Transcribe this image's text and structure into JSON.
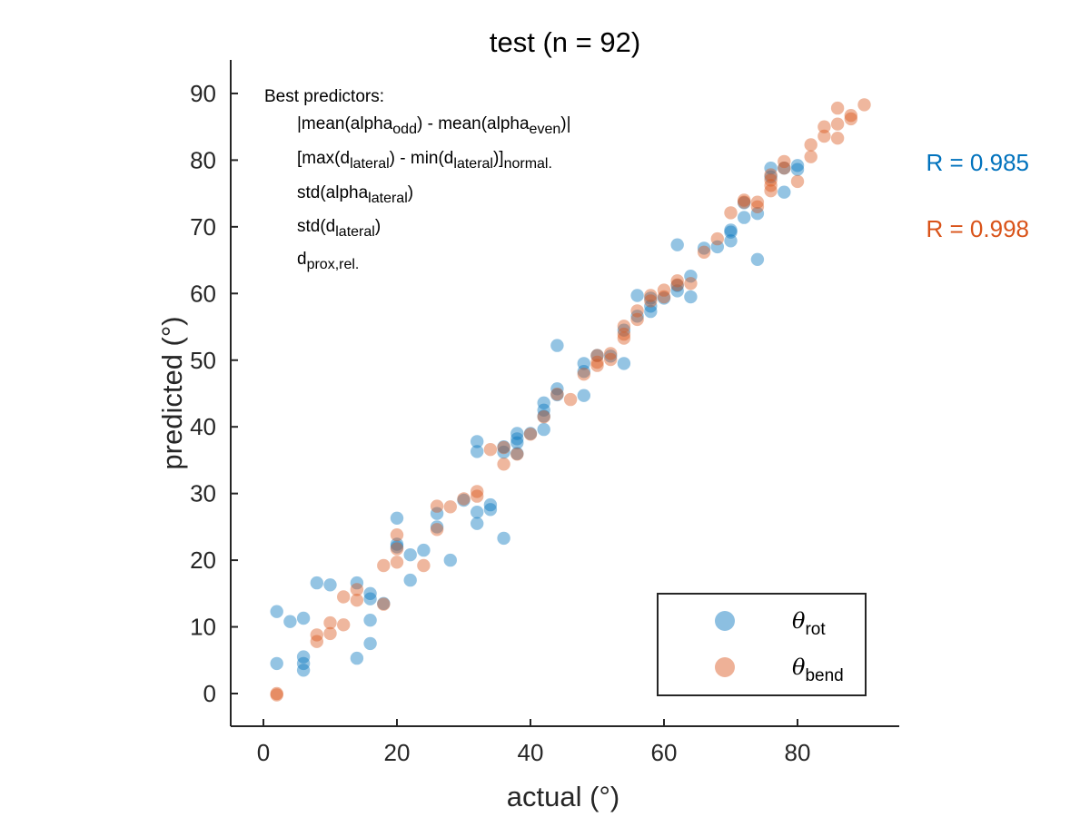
{
  "chart_data": {
    "type": "scatter",
    "title": "test (n = 92)",
    "xlabel": "actual (°)",
    "ylabel": "predicted (°)",
    "xlim": [
      -5,
      95
    ],
    "ylim": [
      -5,
      95
    ],
    "xticks": [
      0,
      20,
      40,
      60,
      80
    ],
    "yticks": [
      0,
      10,
      20,
      30,
      40,
      50,
      60,
      70,
      80,
      90
    ],
    "grid": false,
    "legend_position": "bottom-right",
    "annotations": {
      "predictors_header": "Best predictors:",
      "predictors": [
        {
          "parts": [
            {
              "t": "|mean(alpha"
            },
            {
              "t": "odd",
              "sub": true
            },
            {
              "t": ") - mean(alpha"
            },
            {
              "t": "even",
              "sub": true
            },
            {
              "t": ")|"
            }
          ]
        },
        {
          "parts": [
            {
              "t": "[max(d"
            },
            {
              "t": "lateral",
              "sub": true
            },
            {
              "t": ") - min(d"
            },
            {
              "t": "lateral",
              "sub": true
            },
            {
              "t": ")]"
            },
            {
              "t": "normal.",
              "sub": true
            }
          ]
        },
        {
          "parts": [
            {
              "t": "std(alpha"
            },
            {
              "t": "lateral",
              "sub": true
            },
            {
              "t": ")"
            }
          ]
        },
        {
          "parts": [
            {
              "t": "std(d"
            },
            {
              "t": "lateral",
              "sub": true
            },
            {
              "t": ")"
            }
          ]
        },
        {
          "parts": [
            {
              "t": "d"
            },
            {
              "t": "prox,rel.",
              "sub": true
            }
          ]
        }
      ],
      "r_values": [
        {
          "text": "R = 0.985",
          "color": "#0072BD"
        },
        {
          "text": "R = 0.998",
          "color": "#D95319"
        }
      ]
    },
    "series": [
      {
        "symbol": "θ",
        "subscript": "rot",
        "color": "#0072BD",
        "points": [
          [
            2,
            12.3
          ],
          [
            2,
            4.5
          ],
          [
            4,
            10.8
          ],
          [
            6,
            11.3
          ],
          [
            6,
            5.5
          ],
          [
            6,
            4.5
          ],
          [
            6,
            3.5
          ],
          [
            8,
            16.6
          ],
          [
            10,
            16.3
          ],
          [
            14,
            16.6
          ],
          [
            14,
            5.3
          ],
          [
            16,
            15
          ],
          [
            16,
            14.2
          ],
          [
            16,
            11
          ],
          [
            16,
            7.5
          ],
          [
            18,
            13.5
          ],
          [
            20,
            26.3
          ],
          [
            20,
            22.4
          ],
          [
            20,
            22
          ],
          [
            22,
            20.8
          ],
          [
            22,
            17
          ],
          [
            24,
            21.5
          ],
          [
            26,
            27
          ],
          [
            26,
            25
          ],
          [
            28,
            20
          ],
          [
            30,
            29
          ],
          [
            32,
            37.8
          ],
          [
            32,
            36.3
          ],
          [
            32,
            27.2
          ],
          [
            32,
            25.5
          ],
          [
            34,
            28.3
          ],
          [
            34,
            27.6
          ],
          [
            36,
            37
          ],
          [
            36,
            36.2
          ],
          [
            36,
            23.3
          ],
          [
            38,
            39
          ],
          [
            38,
            38.2
          ],
          [
            38,
            37.6
          ],
          [
            38,
            36
          ],
          [
            40,
            39
          ],
          [
            42,
            43.6
          ],
          [
            42,
            42.5
          ],
          [
            42,
            41.6
          ],
          [
            42,
            39.6
          ],
          [
            44,
            52.2
          ],
          [
            44,
            45.7
          ],
          [
            44,
            44.8
          ],
          [
            48,
            49.5
          ],
          [
            48,
            48.3
          ],
          [
            48,
            44.7
          ],
          [
            50,
            50.7
          ],
          [
            52,
            50.6
          ],
          [
            54,
            54.5
          ],
          [
            54,
            49.5
          ],
          [
            56,
            59.7
          ],
          [
            56,
            56.6
          ],
          [
            58,
            59.3
          ],
          [
            58,
            58.1
          ],
          [
            58,
            57.3
          ],
          [
            60,
            59.3
          ],
          [
            62,
            67.3
          ],
          [
            62,
            61.2
          ],
          [
            62,
            60.4
          ],
          [
            64,
            62.6
          ],
          [
            64,
            59.5
          ],
          [
            66,
            66.8
          ],
          [
            68,
            67
          ],
          [
            70,
            69.5
          ],
          [
            70,
            69.2
          ],
          [
            70,
            67.9
          ],
          [
            72,
            73.6
          ],
          [
            72,
            71.4
          ],
          [
            74,
            72
          ],
          [
            74,
            65.1
          ],
          [
            76,
            78.8
          ],
          [
            76,
            77.5
          ],
          [
            78,
            78.8
          ],
          [
            78,
            75.2
          ],
          [
            80,
            79.2
          ],
          [
            80,
            78.6
          ]
        ]
      },
      {
        "symbol": "θ",
        "subscript": "bend",
        "color": "#D95319",
        "points": [
          [
            2,
            0
          ],
          [
            2,
            -0.2
          ],
          [
            8,
            8.8
          ],
          [
            8,
            7.8
          ],
          [
            10,
            10.6
          ],
          [
            10,
            9
          ],
          [
            12,
            14.5
          ],
          [
            12,
            10.3
          ],
          [
            14,
            15.6
          ],
          [
            14,
            14
          ],
          [
            18,
            19.2
          ],
          [
            18,
            13.4
          ],
          [
            20,
            23.8
          ],
          [
            20,
            21.7
          ],
          [
            20,
            19.7
          ],
          [
            24,
            19.2
          ],
          [
            26,
            28.1
          ],
          [
            26,
            24.6
          ],
          [
            28,
            28
          ],
          [
            30,
            29.2
          ],
          [
            32,
            30.3
          ],
          [
            32,
            29.6
          ],
          [
            34,
            36.6
          ],
          [
            36,
            36.9
          ],
          [
            36,
            34.4
          ],
          [
            38,
            35.9
          ],
          [
            40,
            38.9
          ],
          [
            42,
            41.5
          ],
          [
            44,
            44.9
          ],
          [
            46,
            44.1
          ],
          [
            48,
            47.9
          ],
          [
            50,
            50.7
          ],
          [
            50,
            49.7
          ],
          [
            50,
            49.2
          ],
          [
            52,
            51
          ],
          [
            52,
            50.1
          ],
          [
            54,
            55.1
          ],
          [
            54,
            53.9
          ],
          [
            54,
            53.3
          ],
          [
            56,
            57.4
          ],
          [
            56,
            56.1
          ],
          [
            58,
            59.7
          ],
          [
            58,
            58.9
          ],
          [
            60,
            59.5
          ],
          [
            60,
            60.5
          ],
          [
            62,
            61.9
          ],
          [
            62,
            61.3
          ],
          [
            64,
            61.5
          ],
          [
            66,
            66.2
          ],
          [
            68,
            68.2
          ],
          [
            70,
            72.1
          ],
          [
            72,
            74
          ],
          [
            72,
            73.7
          ],
          [
            74,
            73.7
          ],
          [
            74,
            73
          ],
          [
            76,
            77.8
          ],
          [
            76,
            77
          ],
          [
            76,
            76.2
          ],
          [
            76,
            75.4
          ],
          [
            78,
            79.8
          ],
          [
            78,
            78.8
          ],
          [
            80,
            76.8
          ],
          [
            82,
            82.3
          ],
          [
            82,
            80.5
          ],
          [
            84,
            85
          ],
          [
            84,
            83.6
          ],
          [
            86,
            87.8
          ],
          [
            86,
            85.4
          ],
          [
            86,
            83.3
          ],
          [
            88,
            86.7
          ],
          [
            88,
            86.2
          ],
          [
            90,
            88.3
          ]
        ]
      }
    ]
  }
}
